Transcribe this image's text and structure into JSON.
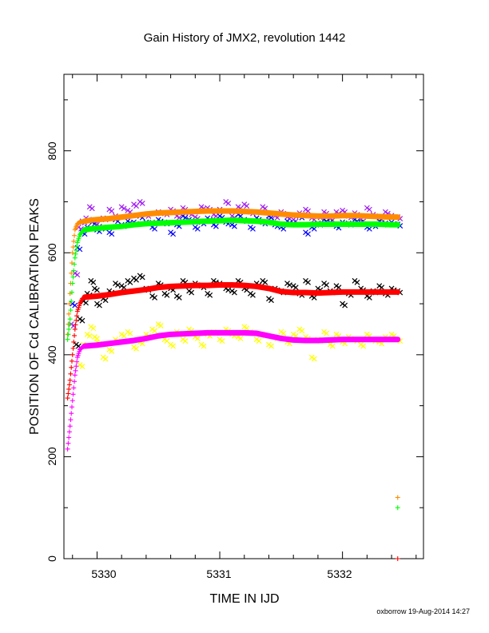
{
  "chart_data": {
    "type": "scatter",
    "title": "Gain History of JMX2, revolution 1442",
    "xlabel": "TIME IN IJD",
    "ylabel": "POSITION OF Cd CALIBRATION PEAKS",
    "xlim": [
      5329.73,
      5332.66
    ],
    "ylim": [
      0,
      950
    ],
    "xticks": [
      "5330",
      "5331",
      "5332"
    ],
    "yticks": [
      "0",
      "200",
      "400",
      "600",
      "800"
    ],
    "grid": false,
    "legend": "none",
    "series": [
      {
        "color": "#a020f0",
        "marker": "x",
        "style": "scatter",
        "x": [
          5329.79,
          5329.82,
          5329.85,
          5329.88,
          5329.91,
          5329.94,
          5329.97,
          5330.0,
          5330.05,
          5330.1,
          5330.15,
          5330.2,
          5330.25,
          5330.3,
          5330.35,
          5330.4,
          5330.45,
          5330.5,
          5330.55,
          5330.6,
          5330.65,
          5330.7,
          5330.75,
          5330.8,
          5330.85,
          5330.9,
          5330.95,
          5331.0,
          5331.05,
          5331.1,
          5331.15,
          5331.2,
          5331.25,
          5331.3,
          5331.35,
          5331.4,
          5331.45,
          5331.5,
          5331.55,
          5331.6,
          5331.65,
          5331.7,
          5331.75,
          5331.8,
          5331.85,
          5331.9,
          5331.95,
          5332.0,
          5332.05,
          5332.1,
          5332.15,
          5332.2,
          5332.25,
          5332.3,
          5332.35,
          5332.4,
          5332.45
        ],
        "y": [
          460,
          560,
          650,
          662,
          668,
          690,
          665,
          655,
          668,
          685,
          672,
          690,
          683,
          695,
          700,
          675,
          660,
          680,
          678,
          685,
          672,
          688,
          678,
          670,
          690,
          688,
          675,
          685,
          700,
          672,
          690,
          695,
          680,
          668,
          690,
          665,
          672,
          680,
          670,
          665,
          678,
          685,
          668,
          672,
          680,
          667,
          680,
          683,
          672,
          678,
          665,
          688,
          675,
          668,
          680,
          673,
          670
        ]
      },
      {
        "color": "#0000ff",
        "marker": "x",
        "style": "scatter",
        "x": [
          5329.8,
          5329.84,
          5329.88,
          5329.92,
          5329.96,
          5330.0,
          5330.05,
          5330.1,
          5330.15,
          5330.2,
          5330.25,
          5330.3,
          5330.35,
          5330.4,
          5330.45,
          5330.5,
          5330.55,
          5330.6,
          5330.65,
          5330.7,
          5330.75,
          5330.8,
          5330.85,
          5330.9,
          5330.95,
          5331.0,
          5331.05,
          5331.1,
          5331.15,
          5331.2,
          5331.25,
          5331.3,
          5331.35,
          5331.4,
          5331.45,
          5331.5,
          5331.55,
          5331.6,
          5331.65,
          5331.7,
          5331.75,
          5331.8,
          5331.85,
          5331.9,
          5331.95,
          5332.0,
          5332.05,
          5332.1,
          5332.15,
          5332.2,
          5332.25,
          5332.3,
          5332.35,
          5332.4,
          5332.45
        ],
        "y": [
          500,
          610,
          640,
          650,
          660,
          645,
          650,
          640,
          665,
          655,
          662,
          660,
          672,
          660,
          650,
          665,
          660,
          640,
          655,
          672,
          665,
          650,
          660,
          668,
          655,
          672,
          660,
          655,
          675,
          665,
          650,
          668,
          660,
          672,
          655,
          650,
          662,
          658,
          672,
          640,
          650,
          658,
          665,
          660,
          652,
          660,
          658,
          665,
          660,
          650,
          655,
          662,
          658,
          660,
          656
        ]
      },
      {
        "color": "#ff8c00",
        "marker": "+",
        "style": "line",
        "x": [
          5329.76,
          5329.78,
          5329.8,
          5329.82,
          5329.84,
          5329.86,
          5329.88,
          5329.9,
          5329.95,
          5330.0,
          5330.1,
          5330.2,
          5330.3,
          5330.4,
          5330.5,
          5330.6,
          5330.7,
          5330.8,
          5330.9,
          5331.0,
          5331.1,
          5331.2,
          5331.3,
          5331.4,
          5331.5,
          5331.6,
          5331.7,
          5331.8,
          5331.9,
          5332.0,
          5332.1,
          5332.2,
          5332.3,
          5332.4,
          5332.45
        ],
        "y": [
          440,
          520,
          600,
          645,
          657,
          660,
          661,
          662,
          664,
          665,
          667,
          670,
          673,
          676,
          678,
          679,
          680,
          681,
          682,
          682,
          682,
          681,
          680,
          678,
          676,
          674,
          673,
          672,
          672,
          673,
          673,
          672,
          671,
          670,
          670
        ]
      },
      {
        "color": "#00ff00",
        "marker": "+",
        "style": "line",
        "x": [
          5329.76,
          5329.78,
          5329.8,
          5329.82,
          5329.84,
          5329.86,
          5329.88,
          5329.9,
          5329.95,
          5330.0,
          5330.1,
          5330.2,
          5330.3,
          5330.4,
          5330.5,
          5330.6,
          5330.7,
          5330.8,
          5330.9,
          5331.0,
          5331.1,
          5331.2,
          5331.3,
          5331.4,
          5331.5,
          5331.6,
          5331.7,
          5331.8,
          5331.9,
          5332.0,
          5332.1,
          5332.2,
          5332.3,
          5332.4,
          5332.45
        ],
        "y": [
          430,
          470,
          540,
          590,
          620,
          635,
          642,
          645,
          647,
          648,
          650,
          652,
          655,
          657,
          658,
          659,
          660,
          661,
          662,
          663,
          664,
          663,
          662,
          660,
          656,
          655,
          655,
          656,
          656,
          656,
          656,
          656,
          656,
          655,
          655
        ]
      },
      {
        "color": "#000000",
        "marker": "x",
        "style": "scatter",
        "x": [
          5329.83,
          5329.86,
          5329.89,
          5329.92,
          5329.95,
          5329.98,
          5330.0,
          5330.05,
          5330.1,
          5330.15,
          5330.2,
          5330.25,
          5330.3,
          5330.35,
          5330.4,
          5330.45,
          5330.5,
          5330.55,
          5330.6,
          5330.65,
          5330.7,
          5330.75,
          5330.8,
          5330.85,
          5330.9,
          5330.95,
          5331.0,
          5331.05,
          5331.1,
          5331.15,
          5331.2,
          5331.25,
          5331.3,
          5331.35,
          5331.4,
          5331.45,
          5331.5,
          5331.55,
          5331.6,
          5331.65,
          5331.7,
          5331.75,
          5331.8,
          5331.85,
          5331.9,
          5331.95,
          5332.0,
          5332.05,
          5332.1,
          5332.15,
          5332.2,
          5332.25,
          5332.3,
          5332.35,
          5332.4,
          5332.45
        ],
        "y": [
          420,
          470,
          505,
          520,
          545,
          530,
          500,
          510,
          525,
          540,
          535,
          545,
          550,
          555,
          530,
          515,
          540,
          520,
          530,
          515,
          545,
          525,
          540,
          535,
          520,
          545,
          540,
          530,
          525,
          545,
          530,
          520,
          540,
          545,
          510,
          530,
          525,
          540,
          535,
          520,
          545,
          515,
          530,
          540,
          525,
          535,
          500,
          520,
          545,
          530,
          515,
          525,
          535,
          520,
          530,
          525
        ]
      },
      {
        "color": "#ff0000",
        "marker": "+",
        "style": "line",
        "x": [
          5329.76,
          5329.78,
          5329.8,
          5329.82,
          5329.84,
          5329.86,
          5329.88,
          5329.9,
          5329.95,
          5330.0,
          5330.1,
          5330.2,
          5330.3,
          5330.4,
          5330.5,
          5330.6,
          5330.7,
          5330.8,
          5330.9,
          5331.0,
          5331.1,
          5331.2,
          5331.3,
          5331.4,
          5331.5,
          5331.6,
          5331.7,
          5331.8,
          5331.9,
          5332.0,
          5332.1,
          5332.2,
          5332.3,
          5332.4,
          5332.45
        ],
        "y": [
          315,
          350,
          400,
          450,
          485,
          500,
          510,
          513,
          514,
          515,
          518,
          522,
          525,
          528,
          532,
          534,
          535,
          536,
          536,
          537,
          537,
          536,
          534,
          530,
          524,
          522,
          522,
          521,
          522,
          523,
          523,
          523,
          523,
          523,
          523
        ]
      },
      {
        "color": "#ffff00",
        "marker": "x",
        "style": "scatter",
        "x": [
          5329.86,
          5329.89,
          5329.92,
          5329.95,
          5329.98,
          5330.0,
          5330.05,
          5330.1,
          5330.15,
          5330.2,
          5330.25,
          5330.3,
          5330.35,
          5330.4,
          5330.45,
          5330.5,
          5330.55,
          5330.6,
          5330.65,
          5330.7,
          5330.75,
          5330.8,
          5330.85,
          5330.9,
          5330.95,
          5331.0,
          5331.05,
          5331.1,
          5331.15,
          5331.2,
          5331.25,
          5331.3,
          5331.35,
          5331.4,
          5331.45,
          5331.5,
          5331.55,
          5331.6,
          5331.65,
          5331.7,
          5331.75,
          5331.8,
          5331.85,
          5331.9,
          5331.95,
          5332.0,
          5332.05,
          5332.1,
          5332.15,
          5332.2,
          5332.25,
          5332.3,
          5332.35,
          5332.4,
          5332.45
        ],
        "y": [
          380,
          420,
          440,
          455,
          435,
          425,
          395,
          410,
          430,
          440,
          445,
          415,
          425,
          440,
          450,
          460,
          430,
          420,
          445,
          430,
          450,
          435,
          420,
          440,
          445,
          430,
          450,
          440,
          435,
          455,
          445,
          430,
          440,
          420,
          435,
          445,
          425,
          440,
          450,
          435,
          395,
          430,
          445,
          420,
          440,
          425,
          435,
          430,
          420,
          440,
          430,
          425,
          435,
          440,
          430
        ]
      },
      {
        "color": "#ff00ff",
        "marker": "+",
        "style": "line",
        "x": [
          5329.76,
          5329.78,
          5329.8,
          5329.82,
          5329.84,
          5329.86,
          5329.88,
          5329.9,
          5329.95,
          5330.0,
          5330.1,
          5330.2,
          5330.3,
          5330.4,
          5330.5,
          5330.6,
          5330.7,
          5330.8,
          5330.9,
          5331.0,
          5331.1,
          5331.2,
          5331.3,
          5331.4,
          5331.5,
          5331.6,
          5331.7,
          5331.8,
          5331.9,
          5332.0,
          5332.1,
          5332.2,
          5332.3,
          5332.4,
          5332.45
        ],
        "y": [
          215,
          260,
          310,
          360,
          395,
          410,
          415,
          417,
          418,
          419,
          422,
          425,
          428,
          432,
          437,
          440,
          441,
          442,
          443,
          443,
          443,
          443,
          442,
          437,
          432,
          429,
          428,
          428,
          429,
          430,
          430,
          430,
          430,
          430,
          430
        ]
      },
      {
        "color": "#ff8c00",
        "marker": "+",
        "style": "scatter",
        "x": [
          5332.45
        ],
        "y": [
          120
        ]
      },
      {
        "color": "#00ff00",
        "marker": "+",
        "style": "scatter",
        "x": [
          5332.45
        ],
        "y": [
          100
        ]
      },
      {
        "color": "#ff0000",
        "marker": "+",
        "style": "scatter",
        "x": [
          5332.45
        ],
        "y": [
          0
        ]
      }
    ]
  },
  "footer": {
    "credit": "oxborrow 19-Aug-2014 14:27"
  }
}
